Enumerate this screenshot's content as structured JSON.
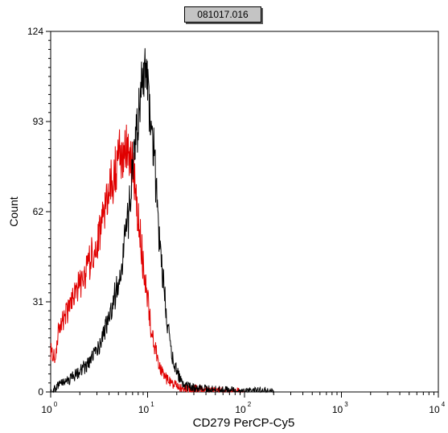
{
  "chart_data": {
    "type": "line",
    "title": "081017.016",
    "xlabel": "CD279 PerCP-Cy5",
    "ylabel": "Count",
    "xscale": "log",
    "xlim": [
      1,
      10000
    ],
    "ylim": [
      0,
      124
    ],
    "xticks": [
      {
        "value": 1,
        "base": "10",
        "exp": "0"
      },
      {
        "value": 10,
        "base": "10",
        "exp": "1"
      },
      {
        "value": 100,
        "base": "10",
        "exp": "2"
      },
      {
        "value": 1000,
        "base": "10",
        "exp": "3"
      },
      {
        "value": 10000,
        "base": "10",
        "exp": "4"
      }
    ],
    "yticks": [
      0,
      31,
      62,
      93,
      124
    ],
    "grid": false,
    "series": [
      {
        "color": "#e00000",
        "x": [
          1.0,
          1.1,
          1.2,
          1.4,
          1.6,
          1.8,
          2.0,
          2.3,
          2.6,
          3.0,
          3.4,
          3.8,
          4.2,
          4.6,
          5.0,
          5.4,
          5.8,
          6.2,
          6.6,
          7.0,
          7.5,
          8.0,
          8.5,
          9.0,
          9.5,
          10.0,
          10.5,
          11.0,
          12.0,
          13.0,
          14.0,
          16.0,
          18.0,
          20.0,
          25.0,
          30.0,
          40.0,
          60.0,
          100.0
        ],
        "y": [
          14,
          12,
          20,
          26,
          30,
          34,
          37,
          41,
          46,
          52,
          58,
          65,
          71,
          76,
          80,
          82,
          86,
          82,
          80,
          76,
          70,
          60,
          52,
          44,
          38,
          32,
          26,
          20,
          15,
          10,
          7,
          4,
          3,
          2,
          1,
          1,
          0.5,
          0.3,
          0
        ]
      },
      {
        "color": "#000000",
        "x": [
          1.0,
          1.2,
          1.5,
          2.0,
          2.5,
          3.0,
          3.5,
          4.0,
          4.5,
          5.0,
          5.5,
          6.0,
          6.5,
          7.0,
          7.5,
          8.0,
          8.5,
          9.0,
          9.5,
          10.0,
          10.5,
          11.0,
          11.5,
          12.0,
          12.5,
          13.0,
          14.0,
          15.0,
          16.0,
          17.0,
          18.0,
          20.0,
          22.0,
          25.0,
          30.0,
          40.0,
          60.0,
          100.0,
          200.0
        ],
        "y": [
          0,
          2,
          4,
          7,
          10,
          14,
          19,
          26,
          32,
          38,
          46,
          54,
          64,
          75,
          84,
          95,
          105,
          112,
          110,
          105,
          98,
          92,
          84,
          75,
          66,
          56,
          44,
          33,
          24,
          17,
          12,
          7,
          4,
          2,
          1.5,
          1,
          0.5,
          0.3,
          0
        ]
      }
    ]
  }
}
